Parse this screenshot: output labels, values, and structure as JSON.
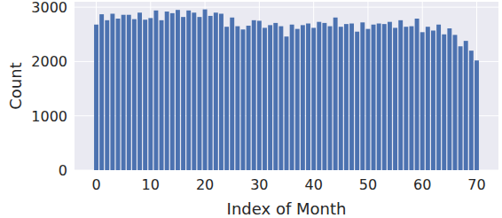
{
  "chart_data": {
    "type": "bar",
    "x_label": "Index of Month",
    "y_label": "Count",
    "x": [
      0,
      1,
      2,
      3,
      4,
      5,
      6,
      7,
      8,
      9,
      10,
      11,
      12,
      13,
      14,
      15,
      16,
      17,
      18,
      19,
      20,
      21,
      22,
      23,
      24,
      25,
      26,
      27,
      28,
      29,
      30,
      31,
      32,
      33,
      34,
      35,
      36,
      37,
      38,
      39,
      40,
      41,
      42,
      43,
      44,
      45,
      46,
      47,
      48,
      49,
      50,
      51,
      52,
      53,
      54,
      55,
      56,
      57,
      58,
      59,
      60,
      61,
      62,
      63,
      64,
      65,
      66,
      67,
      68,
      69,
      70
    ],
    "values": [
      2680,
      2870,
      2760,
      2880,
      2790,
      2860,
      2860,
      2780,
      2900,
      2770,
      2800,
      2940,
      2760,
      2920,
      2890,
      2950,
      2820,
      2940,
      2900,
      2820,
      2960,
      2840,
      2900,
      2880,
      2640,
      2810,
      2650,
      2590,
      2660,
      2760,
      2750,
      2620,
      2670,
      2710,
      2650,
      2460,
      2680,
      2600,
      2670,
      2700,
      2620,
      2730,
      2710,
      2650,
      2810,
      2640,
      2690,
      2700,
      2550,
      2720,
      2600,
      2680,
      2700,
      2690,
      2730,
      2620,
      2760,
      2640,
      2650,
      2790,
      2540,
      2640,
      2570,
      2680,
      2500,
      2610,
      2490,
      2280,
      2380,
      2200,
      2020
    ],
    "color": "#4c72b0",
    "xlim": [
      -4,
      74
    ],
    "xticks": [
      0,
      10,
      20,
      30,
      40,
      50,
      60,
      70
    ],
    "ylim": [
      0,
      3100
    ],
    "yticks": [
      0,
      1000,
      2000,
      3000
    ],
    "grid": true
  }
}
